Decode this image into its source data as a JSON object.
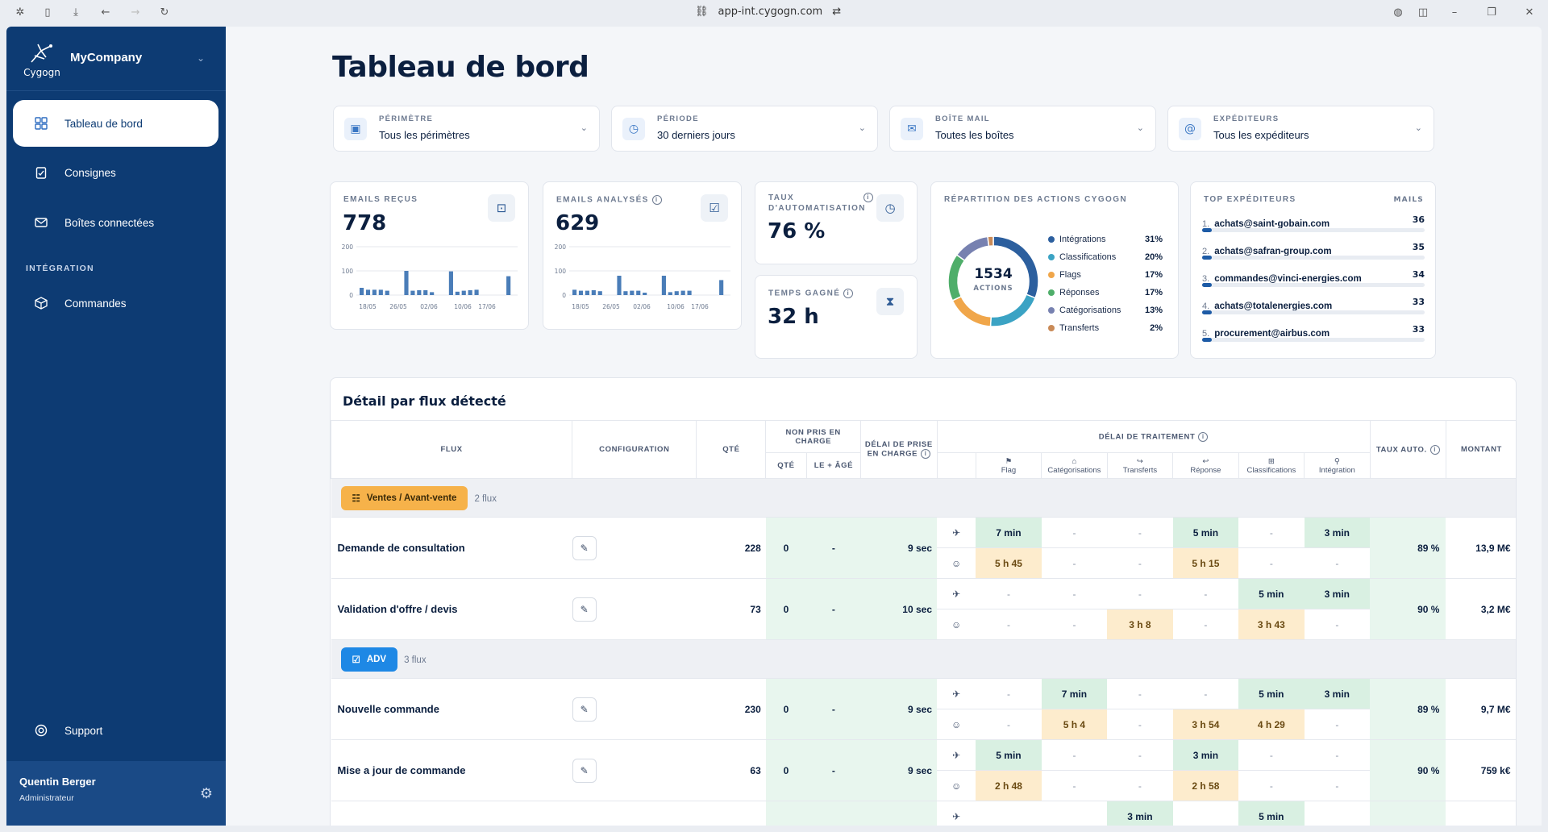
{
  "browser": {
    "url": "app-int.cygogn.com"
  },
  "sidebar": {
    "logo_text": "Cygogn",
    "company": "MyCompany",
    "items": [
      {
        "label": "Tableau de bord"
      },
      {
        "label": "Consignes"
      },
      {
        "label": "Boîtes connectées"
      }
    ],
    "section_label": "INTÉGRATION",
    "integration_items": [
      {
        "label": "Commandes"
      }
    ],
    "support_label": "Support",
    "user": {
      "name": "Quentin Berger",
      "role": "Administrateur"
    }
  },
  "page_title": "Tableau de bord",
  "filters": [
    {
      "label": "PÉRIMÈTRE",
      "value": "Tous les périmètres",
      "icon": "briefcase-icon"
    },
    {
      "label": "PÉRIODE",
      "value": "30 derniers jours",
      "icon": "clock-icon"
    },
    {
      "label": "BOÎTE MAIL",
      "value": "Toutes les boîtes",
      "icon": "mail-icon"
    },
    {
      "label": "EXPÉDITEURS",
      "value": "Tous les expéditeurs",
      "icon": "at-icon"
    }
  ],
  "kpis": {
    "emails_recus": {
      "label": "EMAILS REÇUS",
      "value": "778"
    },
    "emails_analyses": {
      "label": "EMAILS ANALYSÉS",
      "value": "629"
    },
    "taux": {
      "label_1": "TAUX",
      "label_2": "D'AUTOMATISATION",
      "value": "76 %"
    },
    "temps": {
      "label": "TEMPS GAGNÉ",
      "value": "32 h"
    }
  },
  "chart_data": [
    {
      "type": "bar",
      "title": "EMAILS REÇUS",
      "ylim": [
        0,
        200
      ],
      "yticks": [
        "200",
        "100",
        "0"
      ],
      "xticks": [
        "18/05",
        "26/05",
        "02/06",
        "10/06",
        "17/06"
      ],
      "values": [
        30,
        22,
        22,
        22,
        18,
        0,
        0,
        100,
        18,
        20,
        20,
        12,
        0,
        0,
        98,
        14,
        18,
        20,
        22,
        0,
        0,
        0,
        0,
        78
      ]
    },
    {
      "type": "bar",
      "title": "EMAILS ANALYSÉS",
      "ylim": [
        0,
        200
      ],
      "yticks": [
        "200",
        "100",
        "0"
      ],
      "xticks": [
        "18/05",
        "26/05",
        "02/06",
        "10/06",
        "17/06"
      ],
      "values": [
        22,
        18,
        18,
        20,
        16,
        0,
        0,
        80,
        16,
        18,
        18,
        10,
        0,
        0,
        80,
        12,
        16,
        18,
        18,
        0,
        0,
        0,
        0,
        62
      ]
    },
    {
      "type": "pie",
      "title": "RÉPARTITION DES ACTIONS CYGOGN",
      "center_value": "1534",
      "center_label": "ACTIONS",
      "slices": [
        {
          "name": "Intégrations",
          "value": 31,
          "label": "31%",
          "color": "#2c5f9e"
        },
        {
          "name": "Classifications",
          "value": 20,
          "label": "20%",
          "color": "#3ba3c4"
        },
        {
          "name": "Flags",
          "value": 17,
          "label": "17%",
          "color": "#f0a64a"
        },
        {
          "name": "Réponses",
          "value": 17,
          "label": "17%",
          "color": "#4fae6a"
        },
        {
          "name": "Catégorisations",
          "value": 13,
          "label": "13%",
          "color": "#7781b0"
        },
        {
          "name": "Transferts",
          "value": 2,
          "label": "2%",
          "color": "#c98a57"
        }
      ]
    }
  ],
  "top_expediteurs": {
    "label": "TOP EXPÉDITEURS",
    "col": "MAILS",
    "rows": [
      {
        "rank": "1.",
        "email": "achats@saint-gobain.com",
        "count": "36"
      },
      {
        "rank": "2.",
        "email": "achats@safran-group.com",
        "count": "35"
      },
      {
        "rank": "3.",
        "email": "commandes@vinci-energies.com",
        "count": "34"
      },
      {
        "rank": "4.",
        "email": "achats@totalenergies.com",
        "count": "33"
      },
      {
        "rank": "5.",
        "email": "procurement@airbus.com",
        "count": "33"
      }
    ]
  },
  "detail": {
    "title": "Détail par flux détecté",
    "headers": {
      "flux": "FLUX",
      "config": "CONFIGURATION",
      "qte": "QTÉ",
      "non_pris": "NON PRIS EN CHARGE",
      "np_qte": "QTÉ",
      "np_age": "LE + ÂGÉ",
      "delai_prise": "DÉLAI DE PRISE EN CHARGE",
      "delai_trait": "DÉLAI DE TRAITEMENT",
      "sub": [
        "Flag",
        "Catégorisations",
        "Transferts",
        "Réponse",
        "Classifications",
        "Intégration"
      ],
      "taux": "TAUX AUTO.",
      "montant": "MONTANT"
    },
    "groups": [
      {
        "name": "Ventes / Avant-vente",
        "count": "2 flux",
        "color": "#f6b24a",
        "rows": [
          {
            "name": "Demande de consultation",
            "qte": "228",
            "np_qte": "0",
            "np_age": "-",
            "delai": "9 sec",
            "auto": [
              "7 min",
              "-",
              "-",
              "5 min",
              "-",
              "3 min"
            ],
            "human": [
              "5 h 45",
              "-",
              "-",
              "5 h 15",
              "-",
              "-"
            ],
            "taux": "89 %",
            "montant": "13,9 M€"
          },
          {
            "name": "Validation d'offre / devis",
            "qte": "73",
            "np_qte": "0",
            "np_age": "-",
            "delai": "10 sec",
            "auto": [
              "-",
              "-",
              "-",
              "-",
              "5 min",
              "3 min"
            ],
            "human": [
              "-",
              "-",
              "3 h 8",
              "-",
              "3 h 43",
              "-"
            ],
            "taux": "90 %",
            "montant": "3,2 M€"
          }
        ]
      },
      {
        "name": "ADV",
        "count": "3 flux",
        "color": "#1e88e5",
        "rows": [
          {
            "name": "Nouvelle commande",
            "qte": "230",
            "np_qte": "0",
            "np_age": "-",
            "delai": "9 sec",
            "auto": [
              "-",
              "7 min",
              "-",
              "-",
              "5 min",
              "3 min"
            ],
            "human": [
              "-",
              "5 h 4",
              "-",
              "3 h 54",
              "4 h 29",
              "-"
            ],
            "taux": "89 %",
            "montant": "9,7 M€"
          },
          {
            "name": "Mise a jour de commande",
            "qte": "63",
            "np_qte": "0",
            "np_age": "-",
            "delai": "9 sec",
            "auto": [
              "5 min",
              "-",
              "-",
              "3 min",
              "-",
              "-"
            ],
            "human": [
              "2 h 48",
              "-",
              "-",
              "2 h 58",
              "-",
              "-"
            ],
            "taux": "90 %",
            "montant": "759 k€"
          },
          {
            "name": "",
            "qte": "",
            "np_qte": "",
            "np_age": "",
            "delai": "",
            "auto": [
              "",
              "",
              "3 min",
              "",
              "5 min",
              ""
            ],
            "human": [
              "",
              "",
              "",
              "",
              "",
              ""
            ],
            "taux": "",
            "montant": ""
          }
        ]
      }
    ]
  }
}
